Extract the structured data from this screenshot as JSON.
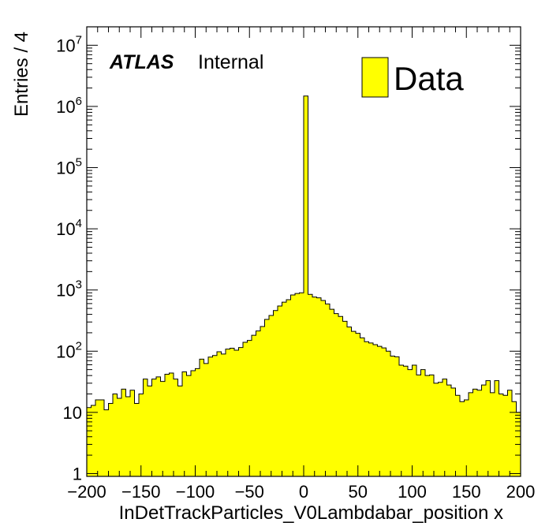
{
  "chart_data": {
    "type": "bar",
    "subtype": "histogram",
    "xlabel": "InDetTrackParticles_V0Lambdabar_position x",
    "ylabel": "Entries / 4",
    "xlim": [
      -200,
      200
    ],
    "ylim": [
      0.9,
      20000000
    ],
    "yscale": "log",
    "bin_width": 4,
    "x_ticks": [
      "−200",
      "−150",
      "−100",
      "−50",
      "0",
      "50",
      "100",
      "150",
      "200"
    ],
    "x_tick_values": [
      -200,
      -150,
      -100,
      -50,
      0,
      50,
      100,
      150,
      200
    ],
    "y_ticks": [
      {
        "value": 1,
        "base": "1",
        "exp": ""
      },
      {
        "value": 10,
        "base": "10",
        "exp": ""
      },
      {
        "value": 100,
        "base": "10",
        "exp": "2"
      },
      {
        "value": 1000,
        "base": "10",
        "exp": "3"
      },
      {
        "value": 10000,
        "base": "10",
        "exp": "4"
      },
      {
        "value": 100000,
        "base": "10",
        "exp": "5"
      },
      {
        "value": 1000000,
        "base": "10",
        "exp": "6"
      },
      {
        "value": 10000000,
        "base": "10",
        "exp": "7"
      }
    ],
    "atlas_label": "ATLAS",
    "atlas_status": "Internal",
    "legend": {
      "position": "top-right",
      "entries": [
        {
          "name": "Data",
          "color": "#ffff00"
        }
      ]
    },
    "fill_color": "#ffff00",
    "edge_color": "#000000",
    "grid": false,
    "series": [
      {
        "name": "Data",
        "bin_lows": [
          -200,
          -196,
          -192,
          -188,
          -184,
          -180,
          -176,
          -172,
          -168,
          -164,
          -160,
          -156,
          -152,
          -148,
          -144,
          -140,
          -136,
          -132,
          -128,
          -124,
          -120,
          -116,
          -112,
          -108,
          -104,
          -100,
          -96,
          -92,
          -88,
          -84,
          -80,
          -76,
          -72,
          -68,
          -64,
          -60,
          -56,
          -52,
          -48,
          -44,
          -40,
          -36,
          -32,
          -28,
          -24,
          -20,
          -16,
          -12,
          -8,
          -4,
          0,
          4,
          8,
          12,
          16,
          20,
          24,
          28,
          32,
          36,
          40,
          44,
          48,
          52,
          56,
          60,
          64,
          68,
          72,
          76,
          80,
          84,
          88,
          92,
          96,
          100,
          104,
          108,
          112,
          116,
          120,
          124,
          128,
          132,
          136,
          140,
          144,
          148,
          152,
          156,
          160,
          164,
          168,
          172,
          176,
          180,
          184,
          188,
          192,
          196
        ],
        "values": [
          12,
          13,
          16,
          16,
          11,
          14,
          20,
          17,
          24,
          18,
          23,
          14,
          20,
          35,
          27,
          35,
          38,
          32,
          42,
          44,
          35,
          27,
          46,
          40,
          48,
          52,
          74,
          63,
          80,
          85,
          98,
          90,
          108,
          112,
          104,
          115,
          140,
          150,
          182,
          214,
          253,
          330,
          384,
          462,
          548,
          632,
          693,
          828,
          877,
          900,
          1480000,
          848,
          768,
          745,
          675,
          592,
          484,
          412,
          370,
          308,
          248,
          211,
          196,
          165,
          143,
          136,
          128,
          120,
          113,
          100,
          83,
          81,
          59,
          57,
          50,
          59,
          41,
          50,
          40,
          41,
          30,
          31,
          35,
          28,
          25,
          19,
          15,
          16,
          21,
          24,
          23,
          28,
          33,
          21,
          33,
          20,
          19,
          23,
          15,
          10
        ]
      }
    ]
  }
}
